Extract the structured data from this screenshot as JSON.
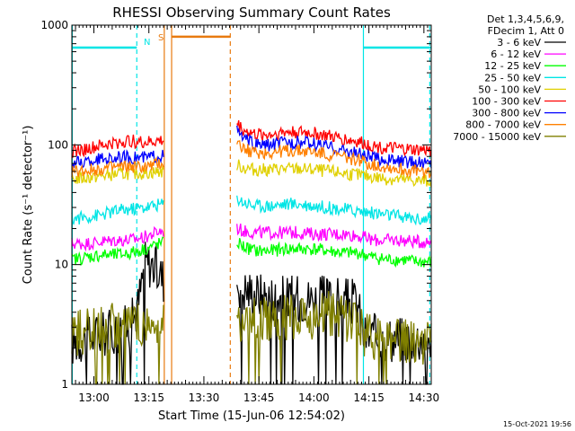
{
  "chart_data": {
    "type": "line",
    "title": "RHESSI Observing Summary Count Rates",
    "xlabel": "Start Time (15-Jun-06 12:54:02)",
    "ylabel": "Count Rate (s⁻¹ detector⁻¹)",
    "yscale": "log",
    "ylim": [
      1,
      1000
    ],
    "xlim_minutes": [
      0,
      98
    ],
    "x_ticks": [
      {
        "min": 6,
        "label": "13:00"
      },
      {
        "min": 21,
        "label": "13:15"
      },
      {
        "min": 36,
        "label": "13:30"
      },
      {
        "min": 51,
        "label": "13:45"
      },
      {
        "min": 66,
        "label": "14:00"
      },
      {
        "min": 81,
        "label": "14:15"
      },
      {
        "min": 96,
        "label": "14:30"
      }
    ],
    "y_ticks": [
      {
        "value": 1,
        "label": "1"
      },
      {
        "value": 10,
        "label": "10"
      },
      {
        "value": 100,
        "label": "100"
      },
      {
        "value": 1000,
        "label": "1000"
      }
    ],
    "header": {
      "line1": "Det 1,3,4,5,6,9,",
      "line2": "FDecim 1, Att 0"
    },
    "timestamp": "15-Oct-2021 19:56",
    "data_gap": {
      "start_min": 25,
      "end_min": 45
    },
    "annotations": {
      "night_label": "N",
      "saa_label": "S",
      "night_intervals": [
        {
          "start": 0,
          "end": 17.7
        },
        {
          "start": 79.5,
          "end": 98
        }
      ],
      "night_level": 650,
      "saa_interval": {
        "start": 27.2,
        "end": 43.2
      },
      "saa_level": 800,
      "lines": [
        {
          "min": 0.1,
          "color": "#00e5e5",
          "style": "solid"
        },
        {
          "min": 17.7,
          "color": "#00e5e5",
          "style": "dashed"
        },
        {
          "min": 25.2,
          "color": "#e87a10",
          "style": "solid"
        },
        {
          "min": 27.2,
          "color": "#e87a10",
          "style": "solid"
        },
        {
          "min": 43.2,
          "color": "#e87a10",
          "style": "dashed"
        },
        {
          "min": 79.5,
          "color": "#00e5e5",
          "style": "solid"
        },
        {
          "min": 97.6,
          "color": "#00e5e5",
          "style": "dashed"
        }
      ]
    },
    "series": [
      {
        "name": "3 - 6 keV",
        "color": "#000000",
        "x": [
          0,
          4,
          8,
          12,
          16,
          18,
          20,
          22,
          24,
          25,
          45,
          47,
          50,
          54,
          58,
          62,
          66,
          70,
          74,
          78,
          79.5,
          82,
          86,
          90,
          94,
          98
        ],
        "y": [
          2.2,
          2.5,
          2.6,
          2.8,
          3.1,
          4.5,
          10.5,
          10,
          8.5,
          7.5,
          7.2,
          6.2,
          5.8,
          5.4,
          5.3,
          5.2,
          5.2,
          5.2,
          5.0,
          4.8,
          2.5,
          2.5,
          2.4,
          2.4,
          2.4,
          2.4
        ]
      },
      {
        "name": "6 - 12 keV",
        "color": "#ff00ff",
        "x": [
          0,
          4,
          8,
          12,
          16,
          20,
          24,
          25,
          45,
          47,
          50,
          54,
          58,
          62,
          66,
          70,
          74,
          78,
          82,
          86,
          90,
          94,
          98
        ],
        "y": [
          15,
          15,
          15.5,
          16,
          16,
          17,
          19,
          19,
          20,
          19,
          18.5,
          18.5,
          18.5,
          18.5,
          18,
          18,
          18,
          17.5,
          16,
          16,
          16,
          15.5,
          15.5
        ]
      },
      {
        "name": "12 - 25 keV",
        "color": "#00ff00",
        "x": [
          0,
          4,
          8,
          12,
          16,
          20,
          24,
          25,
          45,
          47,
          50,
          54,
          58,
          62,
          66,
          70,
          74,
          78,
          82,
          86,
          90,
          94,
          98
        ],
        "y": [
          11,
          11.5,
          12,
          12,
          12.5,
          13.5,
          15,
          15,
          15.5,
          14,
          13,
          13,
          13.5,
          13.5,
          13.5,
          13,
          12.5,
          12.5,
          11.5,
          11,
          11,
          10.5,
          10.5
        ]
      },
      {
        "name": "25 - 50 keV",
        "color": "#00e5e5",
        "x": [
          0,
          4,
          8,
          12,
          16,
          20,
          24,
          25,
          45,
          47,
          50,
          54,
          58,
          62,
          66,
          70,
          74,
          78,
          82,
          86,
          90,
          94,
          98
        ],
        "y": [
          24,
          25,
          26,
          28,
          29,
          30,
          32,
          32,
          36,
          33,
          31,
          31,
          32,
          32,
          31,
          30,
          29,
          28,
          27,
          26,
          25,
          24,
          24
        ]
      },
      {
        "name": "50 - 100 keV",
        "color": "#e0d000",
        "x": [
          0,
          4,
          8,
          12,
          16,
          20,
          24,
          25,
          45,
          47,
          50,
          54,
          58,
          62,
          66,
          70,
          74,
          78,
          82,
          86,
          90,
          94,
          98
        ],
        "y": [
          52,
          53,
          55,
          57,
          58,
          58,
          60,
          60,
          68,
          64,
          62,
          62,
          63,
          63,
          62,
          60,
          58,
          56,
          54,
          52,
          51,
          50,
          50
        ]
      },
      {
        "name": "100 - 300 keV",
        "color": "#ff0000",
        "x": [
          0,
          4,
          8,
          12,
          16,
          20,
          24,
          25,
          45,
          47,
          50,
          54,
          58,
          62,
          66,
          70,
          74,
          78,
          82,
          86,
          90,
          94,
          98
        ],
        "y": [
          88,
          92,
          98,
          104,
          108,
          104,
          108,
          108,
          150,
          132,
          122,
          122,
          128,
          128,
          125,
          118,
          112,
          106,
          98,
          94,
          92,
          90,
          90
        ]
      },
      {
        "name": "300 - 800 keV",
        "color": "#0000ff",
        "x": [
          0,
          4,
          8,
          12,
          16,
          20,
          24,
          25,
          45,
          47,
          50,
          54,
          58,
          62,
          66,
          70,
          74,
          78,
          82,
          86,
          90,
          94,
          98
        ],
        "y": [
          70,
          72,
          76,
          78,
          79,
          78,
          82,
          82,
          130,
          112,
          100,
          100,
          105,
          105,
          102,
          96,
          90,
          85,
          78,
          75,
          73,
          71,
          71
        ]
      },
      {
        "name": "800 - 7000 keV",
        "color": "#ff8000",
        "x": [
          0,
          4,
          8,
          12,
          16,
          20,
          24,
          25,
          45,
          47,
          50,
          54,
          58,
          62,
          66,
          70,
          74,
          78,
          82,
          86,
          90,
          94,
          98
        ],
        "y": [
          60,
          61,
          63,
          65,
          66,
          65,
          70,
          70,
          105,
          92,
          86,
          86,
          89,
          89,
          87,
          83,
          79,
          75,
          68,
          65,
          62,
          60,
          59
        ]
      },
      {
        "name": "7000 - 15000 keV",
        "color": "#808000",
        "x": [
          0,
          4,
          8,
          12,
          16,
          20,
          24,
          25,
          45,
          47,
          50,
          54,
          58,
          62,
          66,
          70,
          74,
          78,
          79.5,
          82,
          86,
          90,
          94,
          98
        ],
        "y": [
          2.6,
          2.7,
          2.9,
          3.2,
          3.2,
          3.2,
          3.2,
          3.2,
          3.7,
          3.4,
          3.5,
          3.5,
          3.6,
          3.7,
          3.7,
          3.8,
          3.6,
          3.4,
          2.5,
          2.4,
          2.3,
          2.3,
          2.3,
          2.3
        ]
      }
    ]
  }
}
